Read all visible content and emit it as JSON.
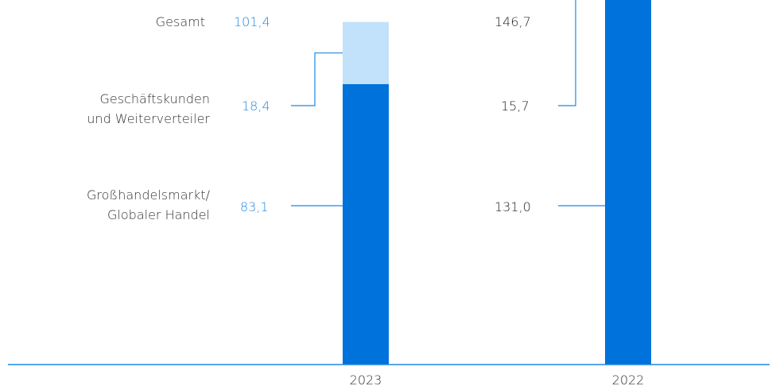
{
  "chart_data": {
    "type": "bar",
    "stacked": true,
    "categories": [
      "2023",
      "2022"
    ],
    "series": [
      {
        "name": "Großhandelsmarkt/\nGlobaler Handel",
        "values": [
          83.1,
          131.0
        ],
        "color": "#0072DB"
      },
      {
        "name": "Geschäftskunden\nund Weiterverteiler",
        "values": [
          18.4,
          15.7
        ],
        "color": "#C2E1FA"
      }
    ],
    "totals": [
      101.4,
      146.7
    ],
    "total_label": "Gesamt",
    "value_labels": {
      "2023": {
        "total": "101,4",
        "segments": [
          "83,1",
          "18,4"
        ],
        "color": "#1E88E5"
      },
      "2022": {
        "total": "146,7",
        "segments": [
          "131,0",
          "15,7"
        ],
        "color": "#222222"
      }
    },
    "legend_text": {
      "total": "Gesamt",
      "seg2_line1": "Geschäftskunden",
      "seg2_line2": "und Weiterverteiler",
      "seg1_line1": "Großhandelsmarkt/",
      "seg1_line2": "Globaler Handel"
    },
    "ylim": [
      0,
      150
    ],
    "axis_color": "#1E88E5",
    "leader_color": "#1E88E5"
  }
}
